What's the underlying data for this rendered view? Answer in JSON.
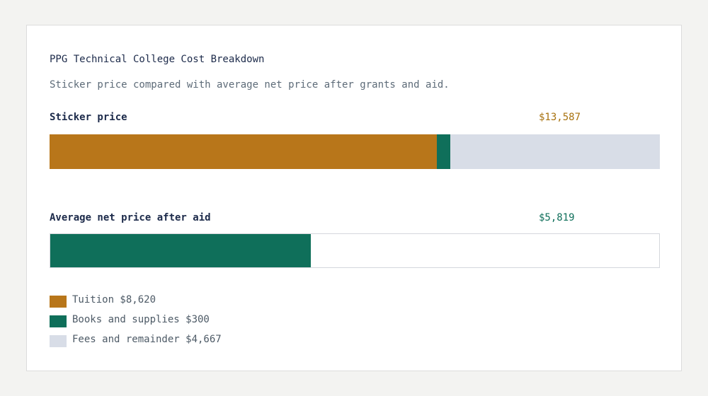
{
  "chart_data": {
    "type": "bar",
    "orientation": "horizontal",
    "stacked": true,
    "title": "PPG Technical College Cost Breakdown",
    "subtitle": "Sticker price compared with average net price after grants and aid.",
    "scale_max": 13587,
    "rows": [
      {
        "label": "Sticker price",
        "value_label": "$13,587",
        "value_color": "#a8720f",
        "outlined": false,
        "segments": [
          {
            "value": 8620,
            "color": "#b8761a"
          },
          {
            "value": 300,
            "color": "#0f6f5a"
          },
          {
            "value": 4667,
            "color": "#d8dde7"
          }
        ]
      },
      {
        "label": "Average net price after aid",
        "value_label": "$5,819",
        "value_color": "#0f6f5a",
        "outlined": true,
        "segments": [
          {
            "value": 5819,
            "color": "#0f6f5a"
          }
        ]
      }
    ],
    "legend": [
      {
        "label": "Tuition $8,620",
        "color": "#b8761a"
      },
      {
        "label": "Books and supplies $300",
        "color": "#0f6f5a"
      },
      {
        "label": "Fees and remainder $4,667",
        "color": "#d8dde7"
      }
    ]
  }
}
